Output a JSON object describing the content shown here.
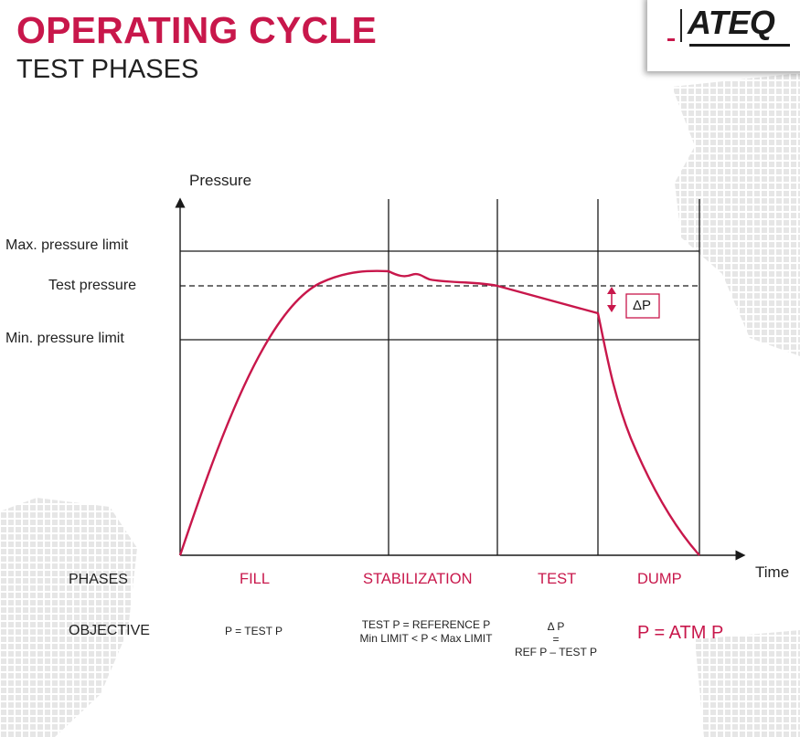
{
  "header": {
    "title": "OPERATING CYCLE",
    "subtitle": "TEST PHASES"
  },
  "logo": {
    "text": "ATEQ"
  },
  "axes": {
    "y_label": "Pressure",
    "x_label": "Time"
  },
  "levels": {
    "max": "Max. pressure limit",
    "test": "Test pressure",
    "min": "Min. pressure limit"
  },
  "delta_label": "ΔP",
  "rows": {
    "phases": "PHASES",
    "objective": "OBJECTIVE"
  },
  "phases": [
    "FILL",
    "STABILIZATION",
    "TEST",
    "DUMP"
  ],
  "objectives": {
    "fill": "P = TEST P",
    "stab_line1": "TEST P = REFERENCE P",
    "stab_line2": "Min LIMIT < P < Max LIMIT",
    "test_line1": "Δ P",
    "test_line2": "=",
    "test_line3": "REF P – TEST P",
    "dump": "P =  ATM P"
  },
  "colors": {
    "accent": "#c8174b",
    "title": "#c8174b",
    "curve": "#c8174b",
    "lines": "#1a1a1a",
    "background_dots": "#e4e4e4"
  }
}
